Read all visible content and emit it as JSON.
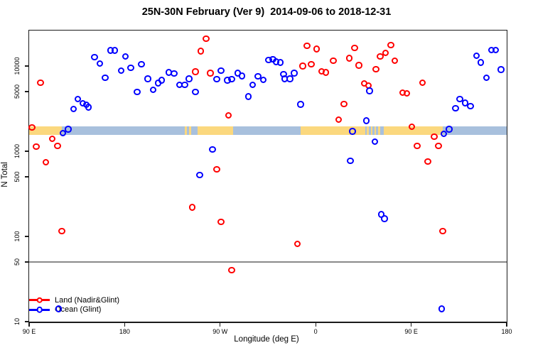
{
  "title": "25N-30N February (Ver 9)  2014-09-06 to 2018-12-31",
  "chart_data": {
    "type": "scatter",
    "title": "25N-30N February (Ver 9)  2014-09-06 to 2018-12-31",
    "xlabel": "Longitude (deg E)",
    "ylabel": "N Total",
    "grid": false,
    "x_axis": {
      "lim": [
        90,
        540
      ],
      "ticks": [
        90,
        180,
        270,
        360,
        450,
        540
      ],
      "tick_labels": [
        "90 E",
        "180",
        "90 W",
        "0",
        "90 E",
        "180"
      ]
    },
    "y_axis": {
      "scale": "log",
      "lim": [
        10,
        26000
      ],
      "ticks": [
        10,
        50,
        100,
        500,
        1000,
        5000,
        10000
      ],
      "tick_labels": [
        "10",
        "50",
        "100",
        "500",
        "1000",
        "5000",
        "10000"
      ]
    },
    "reference_line": {
      "y": 50,
      "color": "#8a8a8a"
    },
    "map_strip": {
      "n_top": 1950,
      "n_bottom": 1560,
      "ocean_color": "#a8c0dd",
      "land_color": "#fbd87e",
      "land_segments": [
        [
          90,
          121
        ],
        [
          236.5,
          239
        ],
        [
          240.5,
          242.5
        ],
        [
          249,
          282
        ],
        [
          346,
          406.5
        ],
        [
          408,
          410
        ],
        [
          412,
          413.5
        ],
        [
          415.5,
          417
        ],
        [
          419,
          421
        ],
        [
          424,
          480
        ]
      ]
    },
    "legend": {
      "position": "bottom-left"
    },
    "series": [
      {
        "name": "Land (Nadir&Glint)",
        "color": "#ff0000",
        "points": [
          [
            101,
            6310
          ],
          [
            257,
            20600
          ],
          [
            252,
            14800
          ],
          [
            247,
            8470
          ],
          [
            261,
            8150
          ],
          [
            278,
            2610
          ],
          [
            267,
            607
          ],
          [
            244,
            217
          ],
          [
            271,
            146
          ],
          [
            281,
            40
          ],
          [
            121,
            114
          ],
          [
            93,
            1890
          ],
          [
            97,
            1120
          ],
          [
            112,
            1390
          ],
          [
            117,
            1140
          ],
          [
            106,
            736
          ],
          [
            348,
            9870
          ],
          [
            356,
            10400
          ],
          [
            352,
            17100
          ],
          [
            361,
            15700
          ],
          [
            366,
            8580
          ],
          [
            370,
            8300
          ],
          [
            377,
            11400
          ],
          [
            387,
            3550
          ],
          [
            382,
            2330
          ],
          [
            397,
            16200
          ],
          [
            392,
            12200
          ],
          [
            401,
            10100
          ],
          [
            417,
            9040
          ],
          [
            421,
            12800
          ],
          [
            426,
            14100
          ],
          [
            431,
            17500
          ],
          [
            435,
            11400
          ],
          [
            406,
            6150
          ],
          [
            410,
            5850
          ],
          [
            442,
            4820
          ],
          [
            446,
            4730
          ],
          [
            461,
            6310
          ],
          [
            451,
            1920
          ],
          [
            472,
            1460
          ],
          [
            456,
            1140
          ],
          [
            476,
            1140
          ],
          [
            466,
            746
          ],
          [
            480,
            114
          ],
          [
            343,
            81
          ]
        ]
      },
      {
        "name": "Ocean (Glint)",
        "color": "#0000ff",
        "points": [
          [
            152,
            12600
          ],
          [
            157,
            10600
          ],
          [
            167,
            15100
          ],
          [
            171,
            15100
          ],
          [
            181,
            12800
          ],
          [
            177,
            8740
          ],
          [
            186,
            9440
          ],
          [
            196,
            10400
          ],
          [
            162,
            7210
          ],
          [
            202,
            6980
          ],
          [
            207,
            5210
          ],
          [
            212,
            6220
          ],
          [
            215,
            6730
          ],
          [
            222,
            8300
          ],
          [
            227,
            8050
          ],
          [
            232,
            5960
          ],
          [
            192,
            4920
          ],
          [
            136,
            4040
          ],
          [
            141,
            3620
          ],
          [
            144,
            3460
          ],
          [
            146,
            3240
          ],
          [
            132,
            3100
          ],
          [
            241,
            6980
          ],
          [
            237,
            5920
          ],
          [
            247,
            4890
          ],
          [
            271,
            8690
          ],
          [
            267,
            6950
          ],
          [
            277,
            6730
          ],
          [
            281,
            6950
          ],
          [
            287,
            8150
          ],
          [
            291,
            7550
          ],
          [
            301,
            5920
          ],
          [
            306,
            7460
          ],
          [
            311,
            6770
          ],
          [
            297,
            4330
          ],
          [
            316,
            11600
          ],
          [
            320,
            11800
          ],
          [
            323,
            11100
          ],
          [
            327,
            10900
          ],
          [
            330,
            7940
          ],
          [
            331,
            6980
          ],
          [
            336,
            6980
          ],
          [
            340,
            8150
          ],
          [
            346,
            3520
          ],
          [
            263,
            1040
          ],
          [
            251,
            518
          ],
          [
            411,
            5040
          ],
          [
            408,
            2250
          ],
          [
            395,
            1690
          ],
          [
            416,
            1280
          ],
          [
            393,
            760
          ],
          [
            481,
            1580
          ],
          [
            486,
            1800
          ],
          [
            496,
            4060
          ],
          [
            501,
            3640
          ],
          [
            506,
            3330
          ],
          [
            492,
            3160
          ],
          [
            512,
            13000
          ],
          [
            516,
            10900
          ],
          [
            526,
            15200
          ],
          [
            530,
            15200
          ],
          [
            535,
            8970
          ],
          [
            521,
            7210
          ],
          [
            422,
            179
          ],
          [
            425,
            160
          ],
          [
            479,
            14
          ],
          [
            118,
            14
          ],
          [
            122,
            1610
          ],
          [
            127,
            1800
          ]
        ]
      }
    ]
  }
}
